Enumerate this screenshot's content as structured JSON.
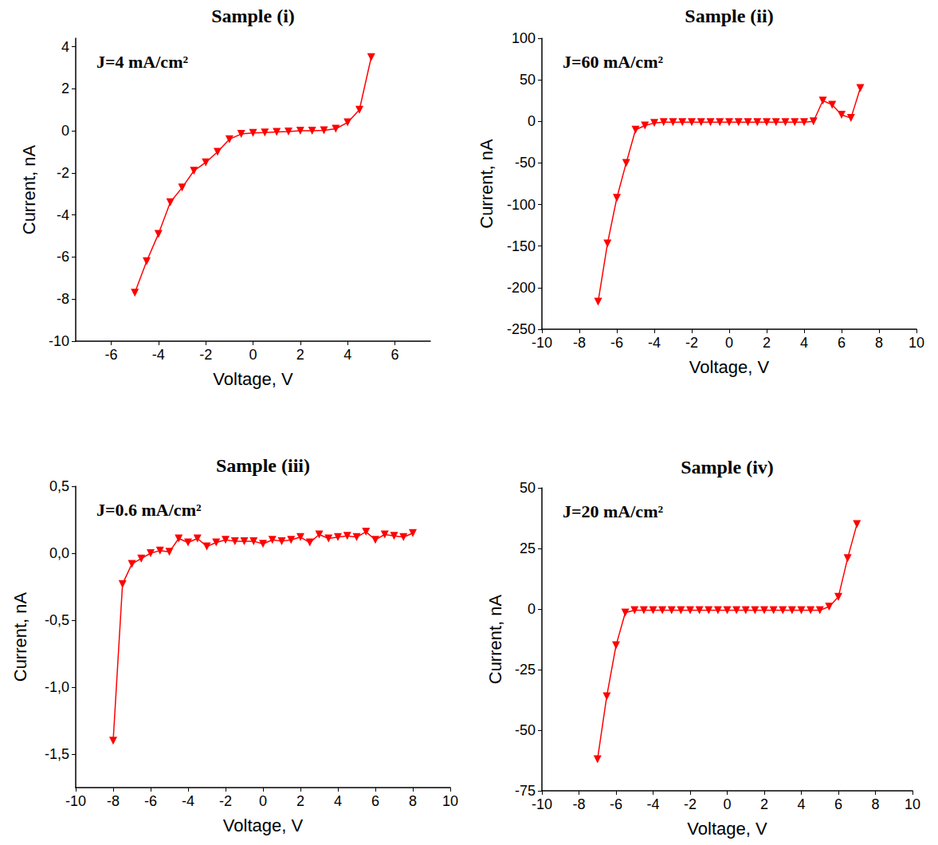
{
  "chart_data": [
    {
      "type": "line",
      "title": "Sample (i)",
      "annotation": "J=4 mA/cm²",
      "x_label": "Voltage, V",
      "y_label": "Current, nA",
      "color": "#ff0000",
      "marker": "triangle-down",
      "grid": false,
      "x": [
        -5,
        -4.5,
        -4,
        -3.5,
        -3,
        -2.5,
        -2,
        -1.5,
        -1,
        -0.5,
        0,
        0.5,
        1,
        1.5,
        2,
        2.5,
        3,
        3.5,
        4,
        4.5,
        5
      ],
      "values": [
        -7.7,
        -6.2,
        -4.9,
        -3.4,
        -2.7,
        -1.9,
        -1.5,
        -1.0,
        -0.4,
        -0.15,
        -0.1,
        -0.08,
        -0.05,
        -0.03,
        0,
        0,
        0.02,
        0.1,
        0.4,
        1.0,
        3.5
      ],
      "xlim": [
        -7.5,
        7.5
      ],
      "xticks": [
        -6,
        -4,
        -2,
        0,
        2,
        4,
        6
      ],
      "ylim": [
        -10,
        4.4
      ],
      "yticks": [
        -10,
        -8,
        -6,
        -4,
        -2,
        0,
        2,
        4
      ]
    },
    {
      "type": "line",
      "title": "Sample (ii)",
      "annotation": "J=60 mA/cm²",
      "x_label": "Voltage, V",
      "y_label": "Current, nA",
      "color": "#ff0000",
      "marker": "triangle-down",
      "grid": false,
      "x": [
        -7,
        -6.5,
        -6,
        -5.5,
        -5,
        -4.5,
        -4,
        -3.5,
        -3,
        -2.5,
        -2,
        -1.5,
        -1,
        -0.5,
        0,
        0.5,
        1,
        1.5,
        2,
        2.5,
        3,
        3.5,
        4,
        4.5,
        5,
        5.5,
        6,
        6.5,
        7
      ],
      "values": [
        -217,
        -147,
        -92,
        -50,
        -10,
        -5,
        -2,
        -1,
        -1,
        -1,
        -1,
        -1,
        -1,
        -1,
        -1,
        -1,
        -1,
        -1,
        -1,
        -1,
        -1,
        -1,
        -1,
        0,
        25,
        20,
        8,
        4,
        40
      ],
      "xlim": [
        -10,
        10
      ],
      "xticks": [
        -10,
        -8,
        -6,
        -4,
        -2,
        0,
        2,
        4,
        6,
        8,
        10
      ],
      "ylim": [
        -250,
        100
      ],
      "yticks": [
        -250,
        -200,
        -150,
        -100,
        -50,
        0,
        50,
        100
      ]
    },
    {
      "type": "line",
      "title": "Sample (iii)",
      "annotation": "J=0.6 mA/cm²",
      "x_label": "Voltage, V",
      "y_label": "Current, nA",
      "color": "#ff0000",
      "marker": "triangle-down",
      "grid": false,
      "x": [
        -8,
        -7.5,
        -7,
        -6.5,
        -6,
        -5.5,
        -5,
        -4.5,
        -4,
        -3.5,
        -3,
        -2.5,
        -2,
        -1.5,
        -1,
        -0.5,
        0,
        0.5,
        1,
        1.5,
        2,
        2.5,
        3,
        3.5,
        4,
        4.5,
        5,
        5.5,
        6,
        6.5,
        7,
        7.5,
        8
      ],
      "values": [
        -1.4,
        -0.23,
        -0.08,
        -0.04,
        0,
        0.02,
        0.01,
        0.11,
        0.08,
        0.11,
        0.05,
        0.08,
        0.1,
        0.09,
        0.09,
        0.09,
        0.07,
        0.1,
        0.09,
        0.1,
        0.12,
        0.08,
        0.14,
        0.11,
        0.12,
        0.13,
        0.12,
        0.16,
        0.1,
        0.14,
        0.13,
        0.12,
        0.15
      ],
      "xlim": [
        -10,
        10
      ],
      "xticks": [
        -10,
        -8,
        -6,
        -4,
        -2,
        0,
        2,
        4,
        6,
        8,
        10
      ],
      "ylim": [
        -1.75,
        0.5
      ],
      "yticks": [
        {
          "value": -1.5,
          "label": "-1,5"
        },
        {
          "value": -1.0,
          "label": "-1,0"
        },
        {
          "value": -0.5,
          "label": "-0,5"
        },
        {
          "value": 0,
          "label": "0,0"
        },
        {
          "value": 0.5,
          "label": "0,5"
        }
      ]
    },
    {
      "type": "line",
      "title": "Sample (iv)",
      "annotation": "J=20 mA/cm²",
      "x_label": "Voltage, V",
      "y_label": "Current, nA",
      "color": "#ff0000",
      "marker": "triangle-down",
      "grid": false,
      "x": [
        -7,
        -6.5,
        -6,
        -5.5,
        -5,
        -4.5,
        -4,
        -3.5,
        -3,
        -2.5,
        -2,
        -1.5,
        -1,
        -0.5,
        0,
        0.5,
        1,
        1.5,
        2,
        2.5,
        3,
        3.5,
        4,
        4.5,
        5,
        5.5,
        6,
        6.5,
        7
      ],
      "values": [
        -62,
        -36,
        -15,
        -1.5,
        -0.5,
        -0.5,
        -0.5,
        -0.5,
        -0.5,
        -0.5,
        -0.5,
        -0.5,
        -0.5,
        -0.5,
        -0.5,
        -0.5,
        -0.5,
        -0.5,
        -0.5,
        -0.5,
        -0.5,
        -0.5,
        -0.5,
        -0.5,
        -0.5,
        1,
        5,
        21,
        35
      ],
      "xlim": [
        -10,
        10
      ],
      "xticks": [
        -10,
        -8,
        -6,
        -4,
        -2,
        0,
        2,
        4,
        6,
        8,
        10
      ],
      "ylim": [
        -75,
        50
      ],
      "yticks": [
        -75,
        -50,
        -25,
        0,
        25,
        50
      ]
    }
  ]
}
